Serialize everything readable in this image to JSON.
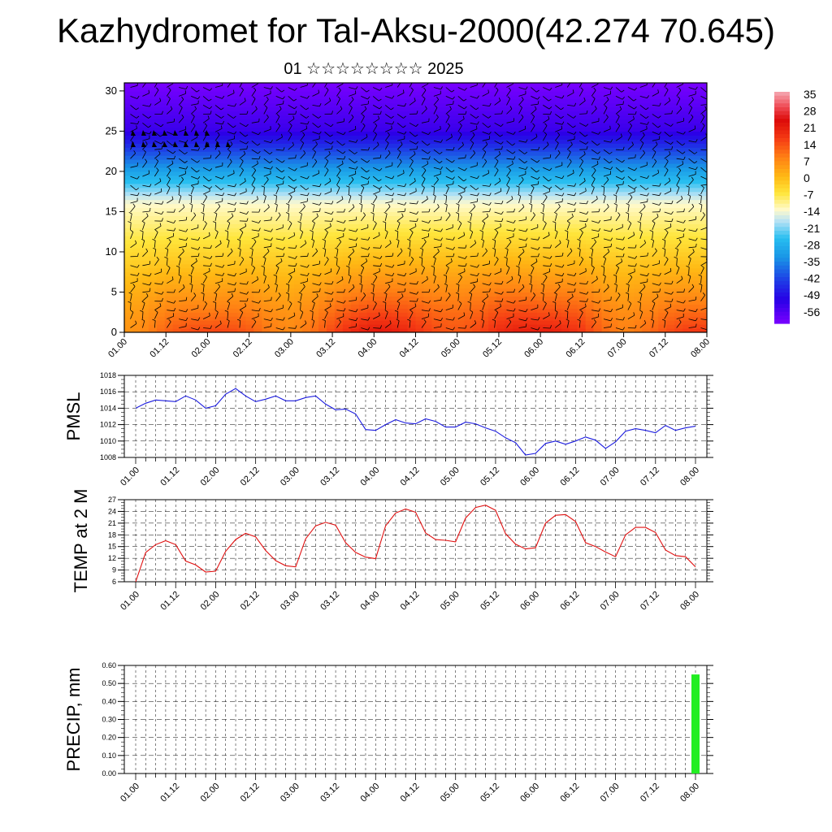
{
  "header": {
    "title": "Kazhydromet for Tal-Aksu-2000(42.274 70.645)",
    "subtitle": "01 ☆☆☆☆☆☆☆☆ 2025"
  },
  "colors": {
    "pmsl_line": "#1a1adf",
    "temp_line": "#e01010",
    "precip_bar": "#22ee22",
    "grid": "#000000"
  },
  "chart_data": [
    {
      "type": "heatmap",
      "title": "",
      "xlabel": "",
      "ylabel": "",
      "x_tick_labels": [
        "01.00",
        "01.12",
        "02.00",
        "02.12",
        "03.00",
        "03.12",
        "04.00",
        "04.12",
        "05.00",
        "05.12",
        "06.00",
        "06.12",
        "07.00",
        "07.12",
        "08.00"
      ],
      "y_ticks": [
        0,
        5,
        10,
        15,
        20,
        25,
        30
      ],
      "ylim": [
        0,
        31
      ],
      "colorbar_labels": [
        "35",
        "28",
        "21",
        "14",
        "7",
        "0",
        "-7",
        "-14",
        "-21",
        "-28",
        "-35",
        "-42",
        "-49",
        "-56"
      ],
      "colorbar_range": [
        -60,
        38
      ],
      "description_of_field": "temperature by height with wind barbs",
      "temperature_profile": {
        "heights": [
          0,
          5,
          10,
          15,
          18,
          21,
          24,
          25,
          27,
          31
        ],
        "surface_temp_by_time": [
          12,
          14,
          12,
          15,
          14,
          17,
          19,
          20,
          20,
          21,
          18,
          19,
          15,
          16,
          14
        ]
      }
    },
    {
      "type": "line",
      "ylabel": "PMSL",
      "ylim": [
        1008,
        1018
      ],
      "y_ticks": [
        1008,
        1010,
        1012,
        1014,
        1016,
        1018
      ],
      "x_tick_labels": [
        "01.00",
        "01.12",
        "02.00",
        "02.12",
        "03.00",
        "03.12",
        "04.00",
        "04.12",
        "05.00",
        "05.12",
        "06.00",
        "06.12",
        "07.00",
        "07.12",
        "08.00"
      ],
      "x": [
        0,
        3,
        6,
        9,
        12,
        15,
        18,
        21,
        24,
        27,
        30,
        33,
        36,
        39,
        42,
        45,
        48,
        51,
        54,
        57,
        60,
        63,
        66,
        69,
        72,
        75,
        78,
        81,
        84,
        87,
        90,
        93,
        96,
        99,
        102,
        105,
        108,
        111,
        114,
        117,
        120,
        123,
        126,
        129,
        132,
        135,
        138,
        141,
        144,
        147,
        150,
        153,
        156,
        159,
        162,
        165,
        168
      ],
      "series": [
        {
          "values": [
            1014.0,
            1014.6,
            1015.0,
            1014.9,
            1014.8,
            1015.5,
            1015.0,
            1014.0,
            1014.3,
            1015.7,
            1016.4,
            1015.5,
            1014.8,
            1015.1,
            1015.5,
            1014.9,
            1014.9,
            1015.3,
            1015.5,
            1014.5,
            1013.8,
            1013.9,
            1013.3,
            1011.4,
            1011.3,
            1012.0,
            1012.6,
            1012.2,
            1012.1,
            1012.7,
            1012.4,
            1011.7,
            1011.7,
            1012.3,
            1012.1,
            1011.6,
            1011.2,
            1010.4,
            1009.8,
            1008.3,
            1008.5,
            1009.7,
            1010.0,
            1009.6,
            1010.0,
            1010.5,
            1010.1,
            1009.1,
            1009.9,
            1011.2,
            1011.5,
            1011.3,
            1011.0,
            1011.9,
            1011.3,
            1011.6,
            1011.8
          ]
        }
      ]
    },
    {
      "type": "line",
      "ylabel": "TEMP at 2 M",
      "ylim": [
        6,
        27
      ],
      "y_ticks": [
        6,
        9,
        12,
        15,
        18,
        21,
        24,
        27
      ],
      "x_tick_labels": [
        "01.00",
        "01.12",
        "02.00",
        "02.12",
        "03.00",
        "03.12",
        "04.00",
        "04.12",
        "05.00",
        "05.12",
        "06.00",
        "06.12",
        "07.00",
        "07.12",
        "08.00"
      ],
      "x": [
        0,
        3,
        6,
        9,
        12,
        15,
        18,
        21,
        24,
        27,
        30,
        33,
        36,
        39,
        42,
        45,
        48,
        51,
        54,
        57,
        60,
        63,
        66,
        69,
        72,
        75,
        78,
        81,
        84,
        87,
        90,
        93,
        96,
        99,
        102,
        105,
        108,
        111,
        114,
        117,
        120,
        123,
        126,
        129,
        132,
        135,
        138,
        141,
        144,
        147,
        150,
        153,
        156,
        159,
        162,
        165,
        168
      ],
      "series": [
        {
          "values": [
            6.0,
            13.5,
            15.5,
            16.5,
            15.5,
            11.3,
            10.3,
            8.5,
            8.7,
            13.8,
            16.8,
            18.4,
            17.5,
            14.0,
            11.4,
            10.1,
            9.8,
            17.0,
            20.3,
            21.2,
            20.5,
            16.0,
            13.5,
            12.3,
            11.9,
            20.3,
            23.6,
            24.6,
            23.8,
            18.5,
            16.8,
            16.6,
            16.2,
            22.3,
            25.0,
            25.6,
            24.3,
            18.3,
            15.6,
            14.4,
            14.7,
            21.0,
            23.0,
            23.2,
            21.4,
            16.0,
            15.0,
            13.6,
            12.4,
            18.0,
            19.9,
            19.9,
            18.6,
            14.1,
            12.7,
            12.4,
            9.8
          ]
        }
      ]
    },
    {
      "type": "bar",
      "ylabel": "PRECIP, mm",
      "ylim": [
        0.0,
        0.6
      ],
      "y_tick_labels": [
        "0.00",
        "0.10",
        "0.20",
        "0.30",
        "0.40",
        "0.50",
        "0.60"
      ],
      "x_tick_labels": [
        "01.00",
        "01.12",
        "02.00",
        "02.12",
        "03.00",
        "03.12",
        "04.00",
        "04.12",
        "05.00",
        "05.12",
        "06.00",
        "06.12",
        "07.00",
        "07.12",
        "08.00"
      ],
      "bars": [
        {
          "x": 168,
          "value": 0.55
        }
      ]
    }
  ]
}
